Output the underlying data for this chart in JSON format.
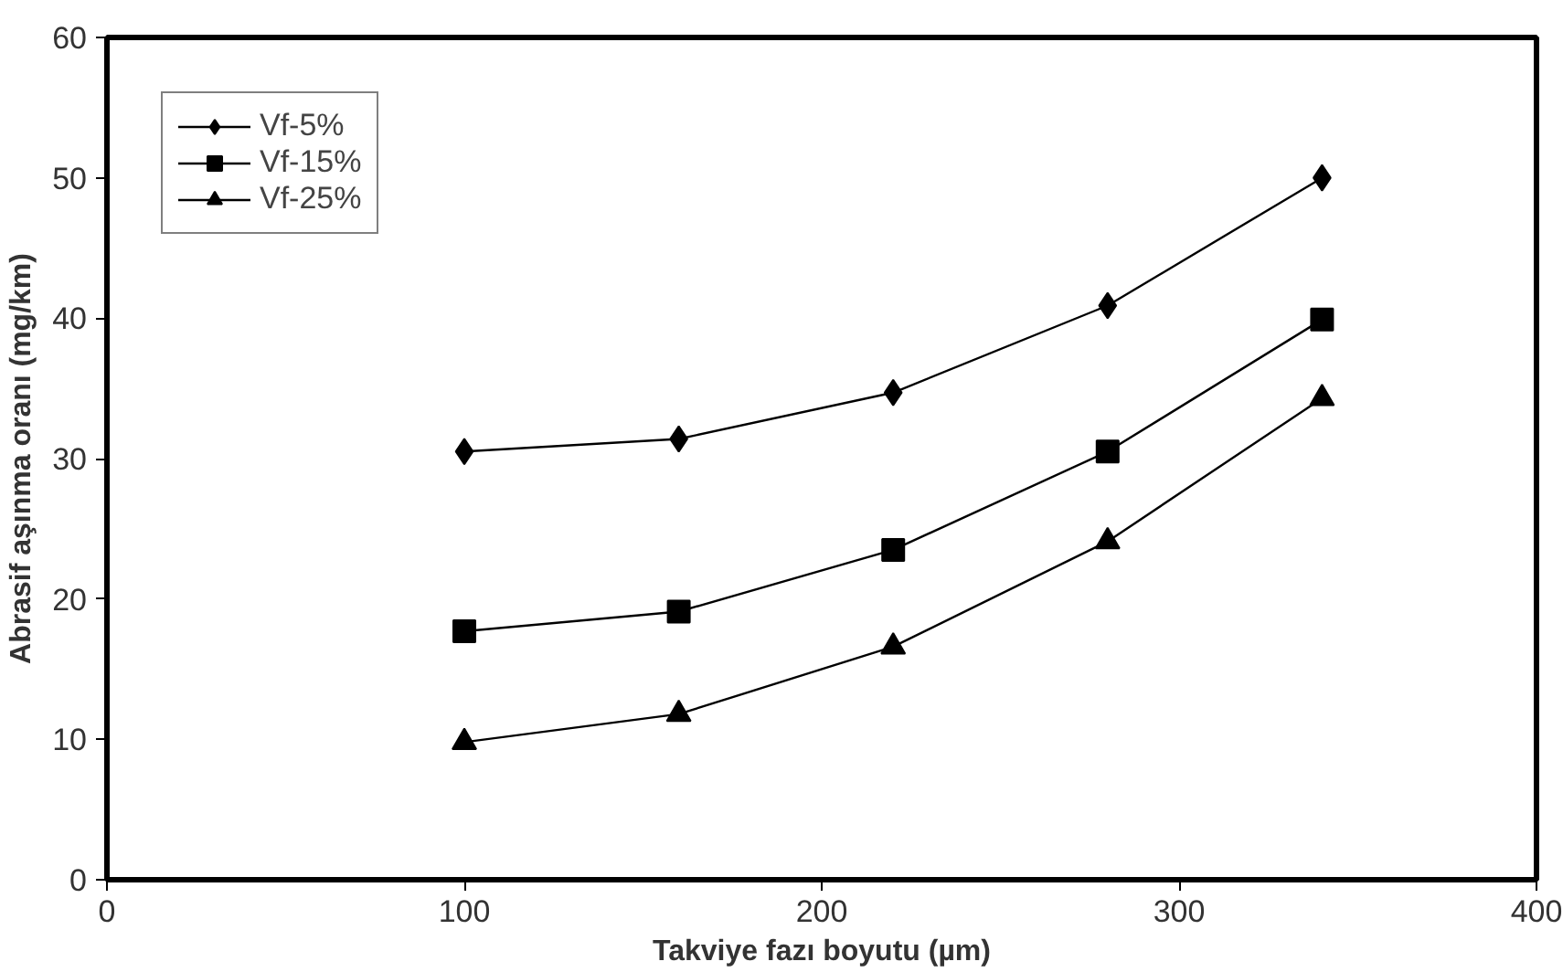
{
  "chart_data": {
    "type": "line",
    "xlabel": "Takviye fazı boyutu (µm)",
    "ylabel": "Abrasif aşınma oranı (mg/km)",
    "x": [
      100,
      160,
      220,
      280,
      340
    ],
    "series": [
      {
        "name": "Vf-5%",
        "color": "#000000",
        "marker": "diamond",
        "values": [
          30.5,
          31.4,
          34.7,
          40.9,
          50.0
        ]
      },
      {
        "name": "Vf-15%",
        "color": "#000000",
        "marker": "square",
        "values": [
          17.7,
          19.1,
          23.5,
          30.5,
          39.9
        ]
      },
      {
        "name": "Vf-25%",
        "color": "#000000",
        "marker": "triangle",
        "values": [
          9.8,
          11.8,
          16.6,
          24.1,
          34.3
        ]
      }
    ],
    "xlim": [
      0,
      400
    ],
    "xticks": [
      0,
      100,
      200,
      300,
      400
    ],
    "ylim": [
      0,
      60
    ],
    "yticks": [
      0,
      10,
      20,
      30,
      40,
      50,
      60
    ],
    "grid": false,
    "legend": "top left",
    "line_style": "solid"
  }
}
